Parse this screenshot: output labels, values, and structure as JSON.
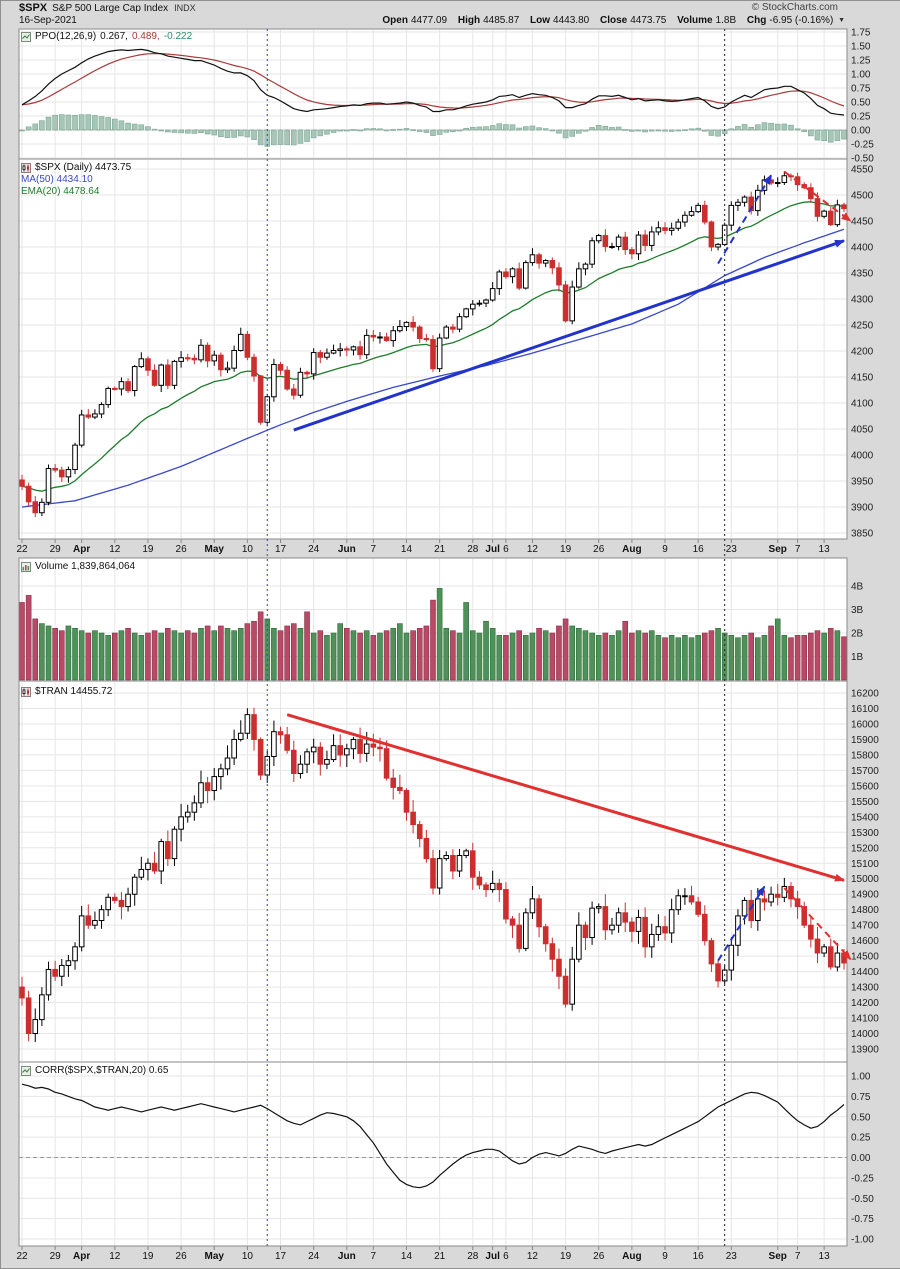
{
  "header": {
    "symbol": "$SPX",
    "name": "S&P 500 Large Cap Index",
    "exchange": "INDX",
    "date": "16-Sep-2021",
    "watermark": "© StockCharts.com",
    "direction_icon": "▼",
    "fields": [
      {
        "label": "Open",
        "value": "4477.09"
      },
      {
        "label": "High",
        "value": "4485.87"
      },
      {
        "label": "Low",
        "value": "4443.80"
      },
      {
        "label": "Close",
        "value": "4473.75"
      },
      {
        "label": "Volume",
        "value": "1.8B"
      },
      {
        "label": "Chg",
        "value": "-6.95 (-0.16%)"
      }
    ]
  },
  "panels": {
    "ppo": {
      "legend_name": "PPO(12,26,9)",
      "v1": "0.267,",
      "v2": "0.489,",
      "v3": "-0.222"
    },
    "price": {
      "main": "$SPX (Daily) 4473.75",
      "ma": "MA(50) 4434.10",
      "ema": "EMA(20) 4478.64"
    },
    "volume": {
      "legend": "Volume 1,839,864,064"
    },
    "tran": {
      "legend": "$TRAN 14455.72"
    },
    "corr": {
      "legend": "CORR($SPX,$TRAN,20) 0.65"
    }
  },
  "colors": {
    "bg": "#d9d9d9",
    "grid": "#e6e6e6",
    "axis_text": "#222222",
    "panel_border": "#8a8a8a",
    "candle_up": "#000000",
    "candle_up_fill": "#ffffff",
    "candle_down": "#cc2e2e",
    "vol_up": "#4f9158",
    "vol_up_edge": "#2f6b3a",
    "vol_down": "#b84a66",
    "vol_down_edge": "#8c2f49",
    "ppo_line": "#111111",
    "ppo_signal": "#aa3a3a",
    "ppo_hist": "#a6c6b8",
    "ppo_hist_edge": "#7fa695",
    "ma50": "#3949c8",
    "ema20": "#1e7d2c",
    "corr_line": "#111111",
    "trend_blue": "#2233cc",
    "trend_red": "#e03030"
  },
  "x_axis": {
    "ticks": [
      {
        "i": 0,
        "l": "22"
      },
      {
        "i": 5,
        "l": "29"
      },
      {
        "i": 9,
        "l": "Apr",
        "b": 1
      },
      {
        "i": 14,
        "l": "12"
      },
      {
        "i": 19,
        "l": "19"
      },
      {
        "i": 24,
        "l": "26"
      },
      {
        "i": 29,
        "l": "May",
        "b": 1
      },
      {
        "i": 34,
        "l": "10"
      },
      {
        "i": 39,
        "l": "17"
      },
      {
        "i": 44,
        "l": "24"
      },
      {
        "i": 49,
        "l": "Jun",
        "b": 1
      },
      {
        "i": 53,
        "l": "7"
      },
      {
        "i": 58,
        "l": "14"
      },
      {
        "i": 63,
        "l": "21"
      },
      {
        "i": 68,
        "l": "28"
      },
      {
        "i": 71,
        "l": "Jul",
        "b": 1
      },
      {
        "i": 73,
        "l": "6"
      },
      {
        "i": 77,
        "l": "12"
      },
      {
        "i": 82,
        "l": "19"
      },
      {
        "i": 87,
        "l": "26"
      },
      {
        "i": 92,
        "l": "Aug",
        "b": 1
      },
      {
        "i": 97,
        "l": "9"
      },
      {
        "i": 102,
        "l": "16"
      },
      {
        "i": 107,
        "l": "23"
      },
      {
        "i": 114,
        "l": "Sep",
        "b": 1
      },
      {
        "i": 117,
        "l": "7"
      },
      {
        "i": 121,
        "l": "13"
      }
    ]
  },
  "vlines": [
    {
      "i": 37,
      "color": "#3344bb"
    },
    {
      "i": 106,
      "color": "#222222"
    }
  ],
  "annotations": [
    {
      "panel": "price",
      "from": [
        41,
        4048
      ],
      "to": [
        124,
        4412
      ],
      "color": "#2233cc",
      "width": 3
    },
    {
      "panel": "price",
      "from": [
        105,
        4368
      ],
      "to": [
        113,
        4538
      ],
      "color": "#2233cc",
      "width": 2,
      "dash": "7,5"
    },
    {
      "panel": "price",
      "from": [
        115,
        4545
      ],
      "to": [
        125,
        4450
      ],
      "color": "#e03030",
      "width": 2,
      "dash": "7,5"
    },
    {
      "panel": "tran",
      "from": [
        40,
        16060
      ],
      "to": [
        124,
        14990
      ],
      "color": "#e03030",
      "width": 3
    },
    {
      "panel": "tran",
      "from": [
        105,
        14470
      ],
      "to": [
        112,
        14950
      ],
      "color": "#2233cc",
      "width": 2,
      "dash": "7,5"
    },
    {
      "panel": "tran",
      "from": [
        115,
        14940
      ],
      "to": [
        125,
        14480
      ],
      "color": "#e03030",
      "width": 2,
      "dash": "7,5"
    }
  ],
  "chart_data": [
    {
      "id": "ppo",
      "type": "line",
      "title": "PPO(12,26,9)",
      "current": {
        "ppo": 0.267,
        "signal": 0.489,
        "histogram": -0.222
      },
      "signal_period": 9,
      "ylim": [
        -0.5,
        1.75
      ],
      "values": [
        0.45,
        0.52,
        0.6,
        0.7,
        0.82,
        0.92,
        1.0,
        1.06,
        1.12,
        1.2,
        1.27,
        1.32,
        1.36,
        1.4,
        1.42,
        1.43,
        1.42,
        1.43,
        1.44,
        1.42,
        1.38,
        1.36,
        1.32,
        1.3,
        1.28,
        1.26,
        1.24,
        1.24,
        1.2,
        1.16,
        1.1,
        1.05,
        1.02,
        1.02,
        0.97,
        0.88,
        0.72,
        0.62,
        0.58,
        0.52,
        0.45,
        0.38,
        0.35,
        0.33,
        0.36,
        0.37,
        0.38,
        0.4,
        0.42,
        0.43,
        0.45,
        0.44,
        0.47,
        0.48,
        0.48,
        0.46,
        0.47,
        0.48,
        0.5,
        0.48,
        0.44,
        0.41,
        0.33,
        0.33,
        0.36,
        0.36,
        0.39,
        0.43,
        0.46,
        0.48,
        0.5,
        0.54,
        0.6,
        0.61,
        0.63,
        0.58,
        0.62,
        0.65,
        0.63,
        0.62,
        0.58,
        0.52,
        0.4,
        0.4,
        0.44,
        0.47,
        0.55,
        0.61,
        0.61,
        0.6,
        0.62,
        0.58,
        0.54,
        0.56,
        0.52,
        0.53,
        0.54,
        0.52,
        0.51,
        0.52,
        0.54,
        0.56,
        0.58,
        0.52,
        0.42,
        0.38,
        0.41,
        0.5,
        0.56,
        0.62,
        0.58,
        0.65,
        0.72,
        0.74,
        0.75,
        0.78,
        0.78,
        0.72,
        0.66,
        0.56,
        0.44,
        0.38,
        0.3,
        0.28,
        0.267
      ]
    },
    {
      "id": "spx",
      "type": "candlestick",
      "title": "$SPX (Daily)",
      "last_close": 4473.75,
      "last_ohlc": {
        "open": 4477.09,
        "high": 4485.87,
        "low": 4443.8,
        "close": 4473.75
      },
      "ma50_value": 4434.1,
      "ema20_value": 4478.64,
      "ylim": [
        3850,
        4550
      ],
      "closes": [
        3940,
        3910,
        3889,
        3909,
        3974,
        3971,
        3958,
        3972,
        4019,
        4077,
        4073,
        4079,
        4097,
        4128,
        4127,
        4141,
        4124,
        4170,
        4185,
        4163,
        4134,
        4173,
        4134,
        4180,
        4187,
        4186,
        4183,
        4211,
        4181,
        4192,
        4164,
        4167,
        4201,
        4232,
        4188,
        4152,
        4063,
        4112,
        4174,
        4163,
        4127,
        4115,
        4159,
        4156,
        4197,
        4188,
        4196,
        4201,
        4204,
        4202,
        4208,
        4193,
        4230,
        4227,
        4227,
        4220,
        4239,
        4247,
        4255,
        4246,
        4224,
        4222,
        4166,
        4225,
        4246,
        4242,
        4266,
        4281,
        4290,
        4292,
        4298,
        4320,
        4352,
        4343,
        4358,
        4321,
        4370,
        4385,
        4369,
        4374,
        4360,
        4327,
        4258,
        4323,
        4358,
        4367,
        4412,
        4422,
        4401,
        4401,
        4419,
        4395,
        4387,
        4423,
        4403,
        4429,
        4437,
        4432,
        4436,
        4448,
        4461,
        4468,
        4480,
        4448,
        4400,
        4405,
        4442,
        4480,
        4486,
        4496,
        4470,
        4509,
        4529,
        4523,
        4524,
        4537,
        4535,
        4520,
        4514,
        4493,
        4459,
        4469,
        4443,
        4481,
        4473.75
      ],
      "ma50_points": [
        [
          0,
          3900
        ],
        [
          8,
          3912
        ],
        [
          16,
          3942
        ],
        [
          24,
          3978
        ],
        [
          29,
          4005
        ],
        [
          34,
          4032
        ],
        [
          39,
          4058
        ],
        [
          44,
          4082
        ],
        [
          49,
          4103
        ],
        [
          56,
          4130
        ],
        [
          63,
          4152
        ],
        [
          70,
          4172
        ],
        [
          77,
          4196
        ],
        [
          84,
          4222
        ],
        [
          92,
          4252
        ],
        [
          99,
          4290
        ],
        [
          106,
          4345
        ],
        [
          112,
          4380
        ],
        [
          118,
          4408
        ],
        [
          124,
          4434.1
        ]
      ]
    },
    {
      "id": "volume",
      "type": "bar",
      "title": "Volume",
      "current": "1,839,864,064",
      "ylim_billions": [
        0,
        5.2
      ],
      "values_billions": [
        3.3,
        3.6,
        2.6,
        2.4,
        2.3,
        2.2,
        2.1,
        2.3,
        2.2,
        2.1,
        2.0,
        2.1,
        2.0,
        1.9,
        2.0,
        2.1,
        2.2,
        2.0,
        1.9,
        2.0,
        2.1,
        2.0,
        2.2,
        2.1,
        2.0,
        2.1,
        2.0,
        2.2,
        2.3,
        2.1,
        2.3,
        2.2,
        2.1,
        2.2,
        2.4,
        2.5,
        2.9,
        2.6,
        2.2,
        2.1,
        2.3,
        2.4,
        2.2,
        2.9,
        2.0,
        2.1,
        1.9,
        2.0,
        2.4,
        2.2,
        2.1,
        2.0,
        2.1,
        1.9,
        2.0,
        2.1,
        2.2,
        2.4,
        2.0,
        2.1,
        2.2,
        2.3,
        3.4,
        3.9,
        2.2,
        2.1,
        2.0,
        3.3,
        2.1,
        2.0,
        2.5,
        2.2,
        1.9,
        1.9,
        2.0,
        2.1,
        1.9,
        2.0,
        2.2,
        2.1,
        2.0,
        2.3,
        2.6,
        2.3,
        2.2,
        2.1,
        2.0,
        1.9,
        2.0,
        1.9,
        2.1,
        2.5,
        2.0,
        2.1,
        2.0,
        2.1,
        1.9,
        1.8,
        1.9,
        1.8,
        1.9,
        1.8,
        1.9,
        2.0,
        2.1,
        2.2,
        2.0,
        1.9,
        1.8,
        1.9,
        2.0,
        1.8,
        1.9,
        2.3,
        2.6,
        1.9,
        1.8,
        1.9,
        1.9,
        2.0,
        2.1,
        2.0,
        2.2,
        2.1,
        1.84
      ]
    },
    {
      "id": "tran",
      "type": "candlestick",
      "title": "$TRAN",
      "last_close": 14455.72,
      "ylim": [
        13900,
        16200
      ],
      "closes": [
        14230,
        14000,
        14090,
        14250,
        14414,
        14370,
        14440,
        14470,
        14560,
        14760,
        14700,
        14730,
        14800,
        14880,
        14860,
        14820,
        14900,
        15010,
        15060,
        15100,
        15050,
        15240,
        15130,
        15320,
        15400,
        15430,
        15490,
        15620,
        15570,
        15660,
        15710,
        15780,
        15900,
        15940,
        16060,
        15900,
        15670,
        15790,
        15950,
        15930,
        15830,
        15680,
        15740,
        15820,
        15850,
        15740,
        15770,
        15860,
        15800,
        15840,
        15900,
        15810,
        15870,
        15850,
        15840,
        15650,
        15590,
        15570,
        15430,
        15350,
        15260,
        15130,
        14940,
        15130,
        15150,
        15050,
        15150,
        15180,
        15010,
        14960,
        14930,
        14970,
        14930,
        14740,
        14700,
        14550,
        14780,
        14870,
        14690,
        14580,
        14480,
        14370,
        14190,
        14480,
        14700,
        14620,
        14810,
        14820,
        14670,
        14700,
        14780,
        14720,
        14660,
        14750,
        14560,
        14640,
        14690,
        14650,
        14800,
        14890,
        14890,
        14850,
        14770,
        14600,
        14450,
        14340,
        14410,
        14570,
        14760,
        14860,
        14730,
        14870,
        14850,
        14900,
        14880,
        14950,
        14870,
        14820,
        14700,
        14610,
        14520,
        14560,
        14430,
        14520,
        14455.72
      ]
    },
    {
      "id": "corr",
      "type": "line",
      "title": "CORR($SPX,$TRAN,20)",
      "current": 0.65,
      "ylim": [
        -1,
        1
      ],
      "values": [
        0.9,
        0.88,
        0.85,
        0.86,
        0.84,
        0.8,
        0.78,
        0.75,
        0.72,
        0.7,
        0.66,
        0.62,
        0.6,
        0.58,
        0.6,
        0.62,
        0.6,
        0.58,
        0.56,
        0.58,
        0.6,
        0.62,
        0.6,
        0.58,
        0.6,
        0.62,
        0.64,
        0.66,
        0.64,
        0.62,
        0.6,
        0.58,
        0.56,
        0.58,
        0.6,
        0.62,
        0.64,
        0.6,
        0.55,
        0.5,
        0.45,
        0.42,
        0.4,
        0.44,
        0.48,
        0.52,
        0.55,
        0.54,
        0.52,
        0.5,
        0.45,
        0.38,
        0.28,
        0.18,
        0.05,
        -0.08,
        -0.18,
        -0.28,
        -0.33,
        -0.36,
        -0.37,
        -0.35,
        -0.3,
        -0.22,
        -0.15,
        -0.08,
        -0.02,
        0.03,
        0.06,
        0.08,
        0.1,
        0.1,
        0.08,
        0.02,
        -0.04,
        -0.08,
        -0.06,
        0.0,
        0.04,
        0.06,
        0.04,
        0.02,
        0.05,
        0.1,
        0.14,
        0.12,
        0.1,
        0.07,
        0.05,
        0.08,
        0.1,
        0.12,
        0.14,
        0.16,
        0.14,
        0.16,
        0.2,
        0.24,
        0.28,
        0.32,
        0.36,
        0.4,
        0.44,
        0.5,
        0.56,
        0.62,
        0.66,
        0.7,
        0.74,
        0.78,
        0.8,
        0.79,
        0.76,
        0.72,
        0.68,
        0.6,
        0.52,
        0.45,
        0.4,
        0.36,
        0.38,
        0.44,
        0.52,
        0.58,
        0.65
      ]
    }
  ]
}
